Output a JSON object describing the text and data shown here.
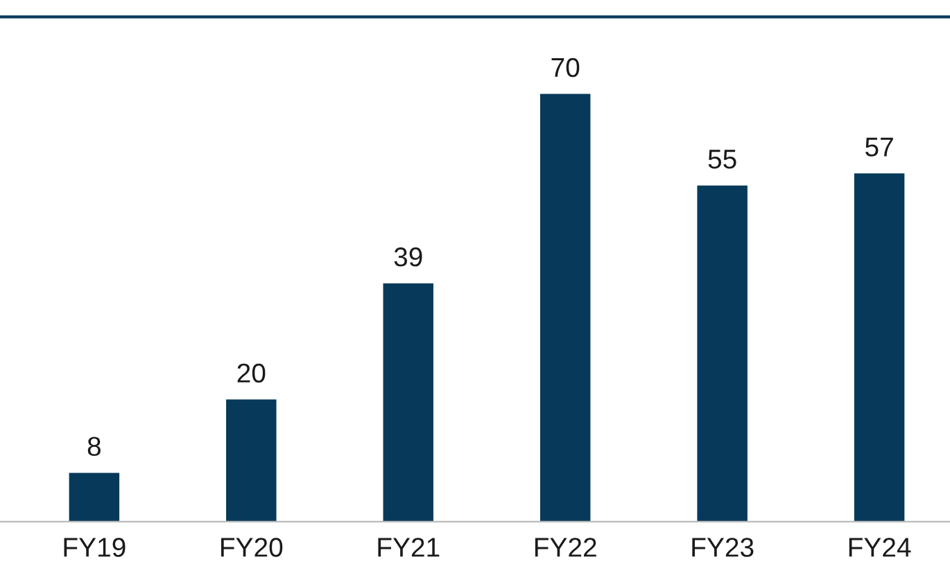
{
  "chart_data": {
    "type": "bar",
    "categories": [
      "FY19",
      "FY20",
      "FY21",
      "FY22",
      "FY23",
      "FY24"
    ],
    "values": [
      8,
      20,
      39,
      70,
      55,
      57
    ],
    "color": "#073a5a",
    "data_labels": true,
    "grid": false,
    "legend": false
  }
}
